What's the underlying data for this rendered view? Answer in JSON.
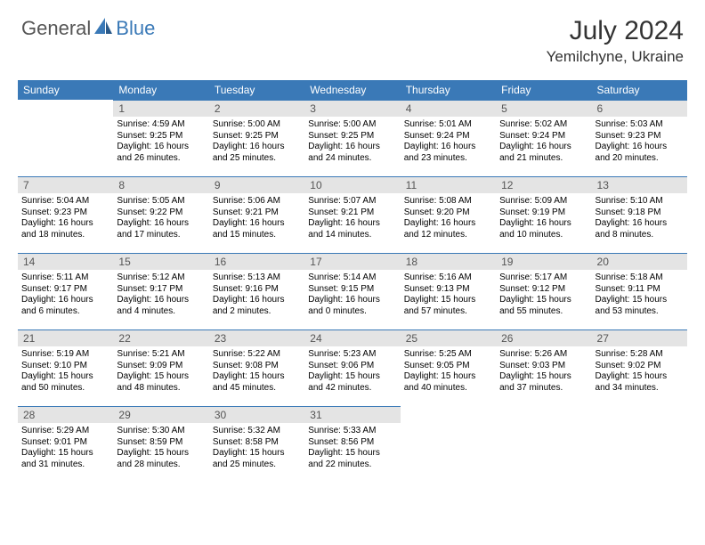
{
  "logo": {
    "part1": "General",
    "part2": "Blue"
  },
  "title": "July 2024",
  "location": "Yemilchyne, Ukraine",
  "colors": {
    "header_bg": "#3a79b7",
    "daynum_bg": "#e4e4e4",
    "row_border": "#3a79b7",
    "page_bg": "#ffffff"
  },
  "weekdays": [
    "Sunday",
    "Monday",
    "Tuesday",
    "Wednesday",
    "Thursday",
    "Friday",
    "Saturday"
  ],
  "grid": [
    [
      {
        "n": "",
        "sr": "",
        "ss": "",
        "d1": "",
        "d2": "",
        "empty": true
      },
      {
        "n": "1",
        "sr": "Sunrise: 4:59 AM",
        "ss": "Sunset: 9:25 PM",
        "d1": "Daylight: 16 hours",
        "d2": "and 26 minutes."
      },
      {
        "n": "2",
        "sr": "Sunrise: 5:00 AM",
        "ss": "Sunset: 9:25 PM",
        "d1": "Daylight: 16 hours",
        "d2": "and 25 minutes."
      },
      {
        "n": "3",
        "sr": "Sunrise: 5:00 AM",
        "ss": "Sunset: 9:25 PM",
        "d1": "Daylight: 16 hours",
        "d2": "and 24 minutes."
      },
      {
        "n": "4",
        "sr": "Sunrise: 5:01 AM",
        "ss": "Sunset: 9:24 PM",
        "d1": "Daylight: 16 hours",
        "d2": "and 23 minutes."
      },
      {
        "n": "5",
        "sr": "Sunrise: 5:02 AM",
        "ss": "Sunset: 9:24 PM",
        "d1": "Daylight: 16 hours",
        "d2": "and 21 minutes."
      },
      {
        "n": "6",
        "sr": "Sunrise: 5:03 AM",
        "ss": "Sunset: 9:23 PM",
        "d1": "Daylight: 16 hours",
        "d2": "and 20 minutes."
      }
    ],
    [
      {
        "n": "7",
        "sr": "Sunrise: 5:04 AM",
        "ss": "Sunset: 9:23 PM",
        "d1": "Daylight: 16 hours",
        "d2": "and 18 minutes."
      },
      {
        "n": "8",
        "sr": "Sunrise: 5:05 AM",
        "ss": "Sunset: 9:22 PM",
        "d1": "Daylight: 16 hours",
        "d2": "and 17 minutes."
      },
      {
        "n": "9",
        "sr": "Sunrise: 5:06 AM",
        "ss": "Sunset: 9:21 PM",
        "d1": "Daylight: 16 hours",
        "d2": "and 15 minutes."
      },
      {
        "n": "10",
        "sr": "Sunrise: 5:07 AM",
        "ss": "Sunset: 9:21 PM",
        "d1": "Daylight: 16 hours",
        "d2": "and 14 minutes."
      },
      {
        "n": "11",
        "sr": "Sunrise: 5:08 AM",
        "ss": "Sunset: 9:20 PM",
        "d1": "Daylight: 16 hours",
        "d2": "and 12 minutes."
      },
      {
        "n": "12",
        "sr": "Sunrise: 5:09 AM",
        "ss": "Sunset: 9:19 PM",
        "d1": "Daylight: 16 hours",
        "d2": "and 10 minutes."
      },
      {
        "n": "13",
        "sr": "Sunrise: 5:10 AM",
        "ss": "Sunset: 9:18 PM",
        "d1": "Daylight: 16 hours",
        "d2": "and 8 minutes."
      }
    ],
    [
      {
        "n": "14",
        "sr": "Sunrise: 5:11 AM",
        "ss": "Sunset: 9:17 PM",
        "d1": "Daylight: 16 hours",
        "d2": "and 6 minutes."
      },
      {
        "n": "15",
        "sr": "Sunrise: 5:12 AM",
        "ss": "Sunset: 9:17 PM",
        "d1": "Daylight: 16 hours",
        "d2": "and 4 minutes."
      },
      {
        "n": "16",
        "sr": "Sunrise: 5:13 AM",
        "ss": "Sunset: 9:16 PM",
        "d1": "Daylight: 16 hours",
        "d2": "and 2 minutes."
      },
      {
        "n": "17",
        "sr": "Sunrise: 5:14 AM",
        "ss": "Sunset: 9:15 PM",
        "d1": "Daylight: 16 hours",
        "d2": "and 0 minutes."
      },
      {
        "n": "18",
        "sr": "Sunrise: 5:16 AM",
        "ss": "Sunset: 9:13 PM",
        "d1": "Daylight: 15 hours",
        "d2": "and 57 minutes."
      },
      {
        "n": "19",
        "sr": "Sunrise: 5:17 AM",
        "ss": "Sunset: 9:12 PM",
        "d1": "Daylight: 15 hours",
        "d2": "and 55 minutes."
      },
      {
        "n": "20",
        "sr": "Sunrise: 5:18 AM",
        "ss": "Sunset: 9:11 PM",
        "d1": "Daylight: 15 hours",
        "d2": "and 53 minutes."
      }
    ],
    [
      {
        "n": "21",
        "sr": "Sunrise: 5:19 AM",
        "ss": "Sunset: 9:10 PM",
        "d1": "Daylight: 15 hours",
        "d2": "and 50 minutes."
      },
      {
        "n": "22",
        "sr": "Sunrise: 5:21 AM",
        "ss": "Sunset: 9:09 PM",
        "d1": "Daylight: 15 hours",
        "d2": "and 48 minutes."
      },
      {
        "n": "23",
        "sr": "Sunrise: 5:22 AM",
        "ss": "Sunset: 9:08 PM",
        "d1": "Daylight: 15 hours",
        "d2": "and 45 minutes."
      },
      {
        "n": "24",
        "sr": "Sunrise: 5:23 AM",
        "ss": "Sunset: 9:06 PM",
        "d1": "Daylight: 15 hours",
        "d2": "and 42 minutes."
      },
      {
        "n": "25",
        "sr": "Sunrise: 5:25 AM",
        "ss": "Sunset: 9:05 PM",
        "d1": "Daylight: 15 hours",
        "d2": "and 40 minutes."
      },
      {
        "n": "26",
        "sr": "Sunrise: 5:26 AM",
        "ss": "Sunset: 9:03 PM",
        "d1": "Daylight: 15 hours",
        "d2": "and 37 minutes."
      },
      {
        "n": "27",
        "sr": "Sunrise: 5:28 AM",
        "ss": "Sunset: 9:02 PM",
        "d1": "Daylight: 15 hours",
        "d2": "and 34 minutes."
      }
    ],
    [
      {
        "n": "28",
        "sr": "Sunrise: 5:29 AM",
        "ss": "Sunset: 9:01 PM",
        "d1": "Daylight: 15 hours",
        "d2": "and 31 minutes."
      },
      {
        "n": "29",
        "sr": "Sunrise: 5:30 AM",
        "ss": "Sunset: 8:59 PM",
        "d1": "Daylight: 15 hours",
        "d2": "and 28 minutes."
      },
      {
        "n": "30",
        "sr": "Sunrise: 5:32 AM",
        "ss": "Sunset: 8:58 PM",
        "d1": "Daylight: 15 hours",
        "d2": "and 25 minutes."
      },
      {
        "n": "31",
        "sr": "Sunrise: 5:33 AM",
        "ss": "Sunset: 8:56 PM",
        "d1": "Daylight: 15 hours",
        "d2": "and 22 minutes."
      },
      {
        "n": "",
        "sr": "",
        "ss": "",
        "d1": "",
        "d2": "",
        "empty": true
      },
      {
        "n": "",
        "sr": "",
        "ss": "",
        "d1": "",
        "d2": "",
        "empty": true
      },
      {
        "n": "",
        "sr": "",
        "ss": "",
        "d1": "",
        "d2": "",
        "empty": true
      }
    ]
  ]
}
